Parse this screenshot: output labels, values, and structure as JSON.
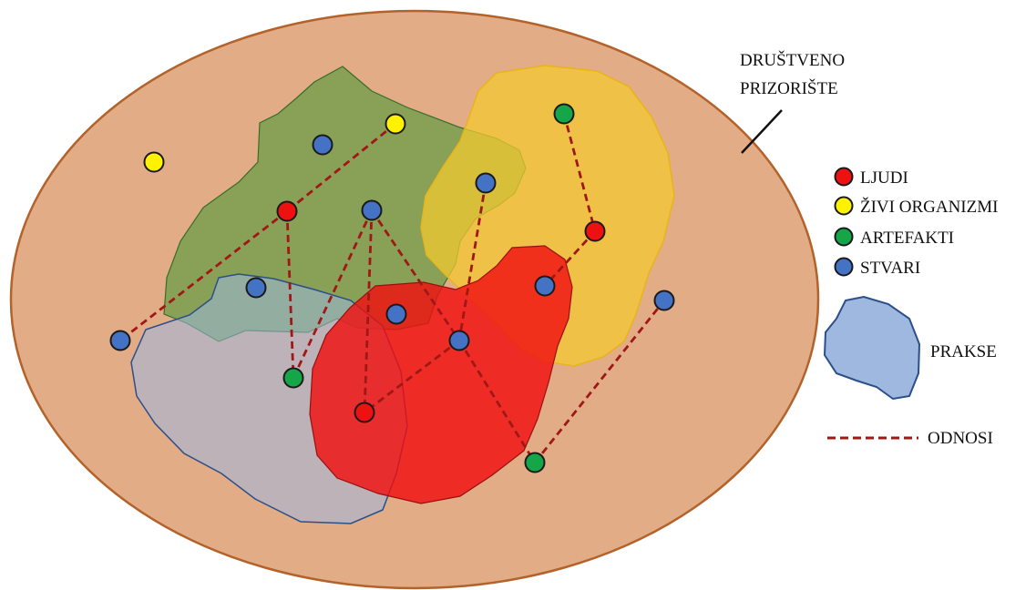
{
  "scene_label": [
    "DRUŠTVENO",
    "PRIZORIŠTE"
  ],
  "legend": {
    "items": [
      {
        "key": "ljudi",
        "label": "LJUDI",
        "color": "#ee1111"
      },
      {
        "key": "zivi",
        "label": "ŽIVI ORGANIZMI",
        "color": "#fff200"
      },
      {
        "key": "artefakti",
        "label": "ARTEFAKTI",
        "color": "#16a64a"
      },
      {
        "key": "stvari",
        "label": "STVARI",
        "color": "#4472c4"
      }
    ],
    "prakse_label": "PRAKSE",
    "odnosi_label": "ODNOSI"
  },
  "colors": {
    "scene_fill": "#e2ac86",
    "scene_stroke": "#b2622a",
    "green_region": "#6a9e45",
    "yellow_region": "#f3c932",
    "red_region": "#f01010",
    "practice_region": "#9fb8e0",
    "practice_stroke": "#2b4f8a",
    "relation_line": "#a01717"
  }
}
